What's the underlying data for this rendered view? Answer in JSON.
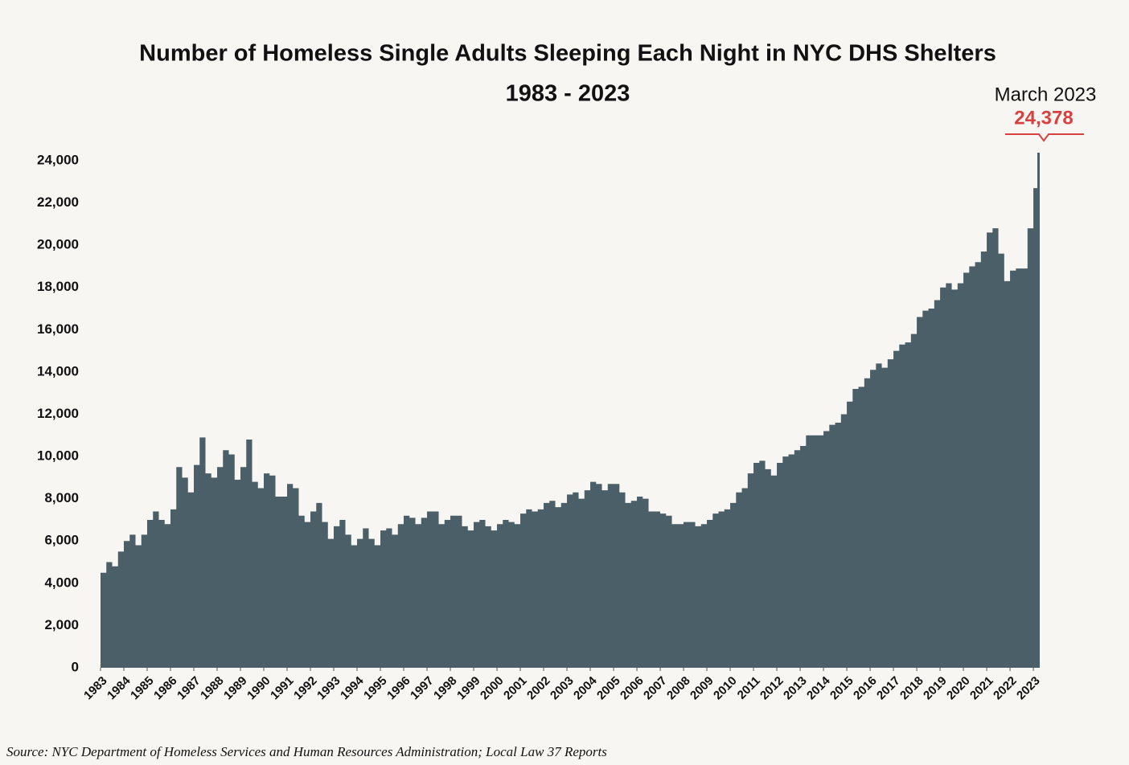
{
  "chart_data": {
    "type": "area",
    "title": "Number of Homeless Single Adults Sleeping Each Night in NYC DHS Shelters",
    "subtitle": "1983 - 2023",
    "annotation": "March 2023",
    "source": "Source:  NYC Department of Homeless Services and Human Resources Administration;  Local Law 37 Reports",
    "color": "#4b5f68",
    "annotation_color": "#d94141",
    "ylim": [
      0,
      24000
    ],
    "yticks": [
      0,
      {
        "value": 2000,
        "label": "2,000"
      },
      {
        "value": 4000,
        "label": "4,000"
      },
      {
        "value": 6000,
        "label": "6,000"
      },
      {
        "value": 8000,
        "label": "8,000"
      },
      {
        "value": 10000,
        "label": "10,000"
      },
      {
        "value": 12000,
        "label": "12,000"
      },
      {
        "value": 14000,
        "label": "14,000"
      },
      {
        "value": 16000,
        "label": "16,000"
      },
      {
        "value": 18000,
        "label": "18,000"
      },
      {
        "value": 20000,
        "label": "20,000"
      },
      {
        "value": 22000,
        "label": "22,000"
      },
      {
        "value": 24000,
        "label": "24,000"
      }
    ],
    "xlim": [
      1983,
      2023.17
    ],
    "xticks": [
      1983,
      1984,
      1985,
      1986,
      1987,
      1988,
      1989,
      1990,
      1991,
      1992,
      1993,
      1994,
      1995,
      1996,
      1997,
      1998,
      1999,
      2000,
      2001,
      2002,
      2003,
      2004,
      2005,
      2006,
      2007,
      2008,
      2009,
      2010,
      2011,
      2012,
      2013,
      2014,
      2015,
      2016,
      2017,
      2018,
      2019,
      2020,
      2021,
      2022,
      2023
    ],
    "x": [
      1983,
      1983.25,
      1983.5,
      1983.75,
      1984,
      1984.25,
      1984.5,
      1984.75,
      1985,
      1985.25,
      1985.5,
      1985.75,
      1986,
      1986.25,
      1986.5,
      1986.75,
      1987,
      1987.25,
      1987.5,
      1987.75,
      1988,
      1988.25,
      1988.5,
      1988.75,
      1989,
      1989.25,
      1989.5,
      1989.75,
      1990,
      1990.25,
      1990.5,
      1990.75,
      1991,
      1991.25,
      1991.5,
      1991.75,
      1992,
      1992.25,
      1992.5,
      1992.75,
      1993,
      1993.25,
      1993.5,
      1993.75,
      1994,
      1994.25,
      1994.5,
      1994.75,
      1995,
      1995.25,
      1995.5,
      1995.75,
      1996,
      1996.25,
      1996.5,
      1996.75,
      1997,
      1997.25,
      1997.5,
      1997.75,
      1998,
      1998.25,
      1998.5,
      1998.75,
      1999,
      1999.25,
      1999.5,
      1999.75,
      2000,
      2000.25,
      2000.5,
      2000.75,
      2001,
      2001.25,
      2001.5,
      2001.75,
      2002,
      2002.25,
      2002.5,
      2002.75,
      2003,
      2003.25,
      2003.5,
      2003.75,
      2004,
      2004.25,
      2004.5,
      2004.75,
      2005,
      2005.25,
      2005.5,
      2005.75,
      2006,
      2006.25,
      2006.5,
      2006.75,
      2007,
      2007.25,
      2007.5,
      2007.75,
      2008,
      2008.25,
      2008.5,
      2008.75,
      2009,
      2009.25,
      2009.5,
      2009.75,
      2010,
      2010.25,
      2010.5,
      2010.75,
      2011,
      2011.25,
      2011.5,
      2011.75,
      2012,
      2012.25,
      2012.5,
      2012.75,
      2013,
      2013.25,
      2013.5,
      2013.75,
      2014,
      2014.25,
      2014.5,
      2014.75,
      2015,
      2015.25,
      2015.5,
      2015.75,
      2016,
      2016.25,
      2016.5,
      2016.75,
      2017,
      2017.25,
      2017.5,
      2017.75,
      2018,
      2018.25,
      2018.5,
      2018.75,
      2019,
      2019.25,
      2019.5,
      2019.75,
      2020,
      2020.25,
      2020.5,
      2020.75,
      2021,
      2021.25,
      2021.5,
      2021.75,
      2022,
      2022.25,
      2022.5,
      2022.75,
      2023,
      2023.17
    ],
    "values": [
      4500,
      5000,
      4800,
      5500,
      6000,
      6300,
      5800,
      6300,
      7000,
      7400,
      7000,
      6800,
      7500,
      9500,
      9000,
      8300,
      9600,
      10900,
      9200,
      9000,
      9500,
      10300,
      10100,
      8900,
      9500,
      10800,
      8800,
      8500,
      9200,
      9100,
      8100,
      8100,
      8700,
      8500,
      7200,
      6900,
      7400,
      7800,
      6900,
      6100,
      6700,
      7000,
      6300,
      5800,
      6100,
      6600,
      6100,
      5800,
      6500,
      6600,
      6300,
      6800,
      7200,
      7100,
      6800,
      7100,
      7400,
      7400,
      6800,
      7000,
      7200,
      7200,
      6700,
      6500,
      6900,
      7000,
      6700,
      6500,
      6800,
      7000,
      6900,
      6800,
      7300,
      7500,
      7400,
      7500,
      7800,
      7900,
      7600,
      7800,
      8200,
      8300,
      8000,
      8400,
      8800,
      8700,
      8400,
      8700,
      8700,
      8300,
      7800,
      7900,
      8100,
      8000,
      7400,
      7400,
      7300,
      7200,
      6800,
      6800,
      6900,
      6900,
      6700,
      6800,
      7000,
      7300,
      7400,
      7500,
      7800,
      8300,
      8500,
      9200,
      9700,
      9800,
      9400,
      9100,
      9700,
      10000,
      10100,
      10300,
      10500,
      11000,
      11000,
      11000,
      11200,
      11500,
      11600,
      12000,
      12600,
      13200,
      13300,
      13700,
      14100,
      14400,
      14200,
      14600,
      15000,
      15300,
      15400,
      15800,
      16600,
      16900,
      17000,
      17400,
      18000,
      18200,
      17900,
      18200,
      18700,
      19000,
      19200,
      19700,
      20600,
      20800,
      19600,
      18300,
      18800,
      18900,
      18900,
      20800,
      22700,
      24378
    ],
    "value_labels": [
      null,
      null,
      null,
      null,
      null,
      null,
      null,
      null,
      null,
      null,
      null,
      null,
      null,
      null,
      null,
      null,
      null,
      null,
      null,
      null,
      null,
      null,
      null,
      null,
      null,
      null,
      null,
      null,
      null,
      null,
      null,
      null,
      null,
      null,
      null,
      null,
      null,
      null,
      null,
      null,
      null,
      null,
      null,
      null,
      null,
      null,
      null,
      null,
      null,
      null,
      null,
      null,
      null,
      null,
      null,
      null,
      null,
      null,
      null,
      null,
      null,
      null,
      null,
      null,
      null,
      null,
      null,
      null,
      null,
      null,
      null,
      null,
      null,
      null,
      null,
      null,
      null,
      null,
      null,
      null,
      null,
      null,
      null,
      null,
      null,
      null,
      null,
      null,
      null,
      null,
      null,
      null,
      null,
      null,
      null,
      null,
      null,
      null,
      null,
      null,
      null,
      null,
      null,
      null,
      null,
      null,
      null,
      null,
      null,
      null,
      null,
      null,
      null,
      null,
      null,
      null,
      null,
      null,
      null,
      null,
      null,
      null,
      null,
      null,
      null,
      null,
      null,
      null,
      null,
      null,
      null,
      null,
      null,
      null,
      null,
      null,
      null,
      null,
      null,
      null,
      null,
      null,
      null,
      null,
      null,
      null,
      null,
      null,
      null,
      null,
      null,
      null,
      null,
      null,
      null,
      null,
      null,
      null,
      null,
      null,
      null,
      "24,378"
    ]
  }
}
